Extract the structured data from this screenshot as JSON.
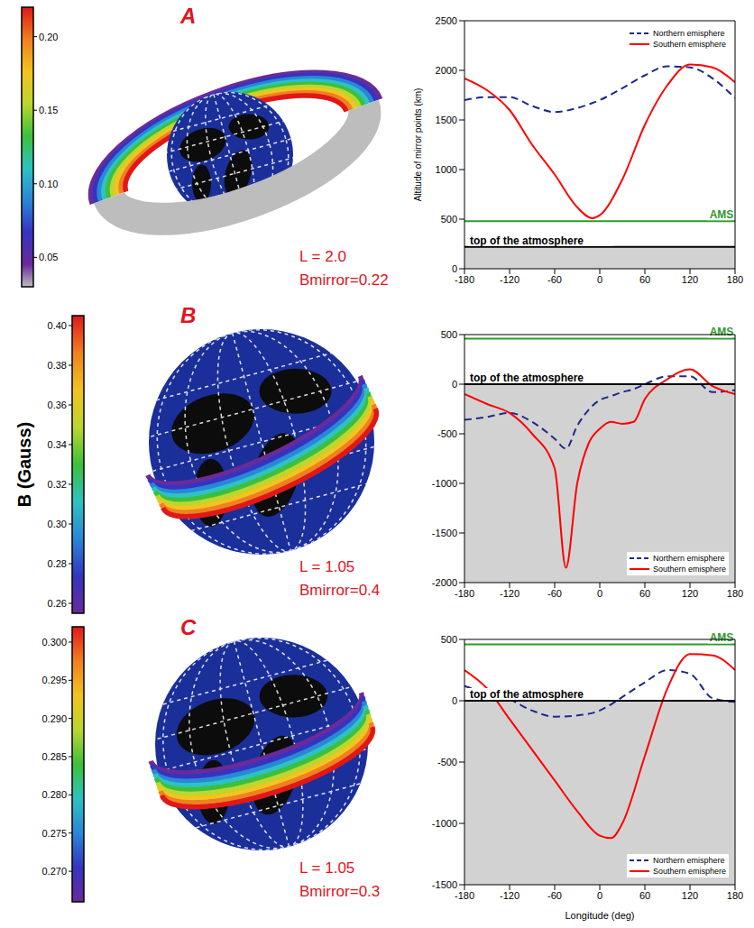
{
  "colorbar_title": "B (Gauss)",
  "chart_data": [
    {
      "panel_label": "A",
      "type": "line",
      "annotations": [
        "L = 2.0",
        "Bmirror=0.22"
      ],
      "colorbar": {
        "range": [
          0.03,
          0.22
        ],
        "ticks": [
          0.05,
          {
            "value": 0.1,
            "label": "0.10"
          },
          0.15,
          {
            "value": 0.2,
            "label": "0.20"
          }
        ]
      },
      "y_label": "Altitude of mirror points (km)",
      "xlim": [
        -180,
        180
      ],
      "xticks": [
        -180,
        -120,
        -60,
        0,
        60,
        120,
        180
      ],
      "ylim": [
        0,
        2500
      ],
      "yticks": [
        0,
        500,
        1000,
        1500,
        2000,
        2500
      ],
      "x": [
        -180,
        -150,
        -120,
        -90,
        -60,
        -30,
        -10,
        0,
        30,
        60,
        90,
        120,
        150,
        180
      ],
      "series": [
        {
          "name": "Northern emisphere",
          "color": "#1f2a8a",
          "line_style": "dashed",
          "values": [
            1700,
            1730,
            1730,
            1640,
            1580,
            1620,
            1670,
            1700,
            1820,
            1950,
            2040,
            2030,
            1920,
            1720
          ]
        },
        {
          "name": "Southern emisphere",
          "color": "#ff0000",
          "line_style": "solid",
          "values": [
            1920,
            1800,
            1600,
            1250,
            950,
            620,
            510,
            540,
            900,
            1450,
            1850,
            2060,
            2030,
            1880
          ]
        }
      ],
      "legend": "upper right",
      "reference_lines": [
        {
          "label": "AMS",
          "value": 480,
          "color": "#2e9a2e"
        },
        {
          "label": "top of the atmosphere",
          "value": 220,
          "color": "#000000"
        }
      ]
    },
    {
      "panel_label": "B",
      "type": "line",
      "annotations": [
        "L = 1.05",
        "Bmirror=0.4"
      ],
      "colorbar": {
        "range": [
          0.255,
          0.405
        ],
        "ticks": [
          0.26,
          0.28,
          {
            "value": 0.3,
            "label": "0.30"
          },
          0.32,
          0.34,
          0.36,
          0.38,
          {
            "value": 0.4,
            "label": "0.40"
          }
        ]
      },
      "xlim": [
        -180,
        180
      ],
      "xticks": [
        -180,
        -120,
        -60,
        0,
        60,
        120,
        180
      ],
      "ylim": [
        -2000,
        500
      ],
      "yticks": [
        -2000,
        -1500,
        -1000,
        -500,
        0,
        500
      ],
      "x": [
        -180,
        -150,
        -120,
        -90,
        -60,
        -45,
        -30,
        -15,
        0,
        15,
        30,
        45,
        60,
        90,
        120,
        150,
        180
      ],
      "series": [
        {
          "name": "Northern emisphere",
          "color": "#1f2a8a",
          "line_style": "dashed",
          "values": [
            -360,
            -330,
            -290,
            -380,
            -550,
            -650,
            -420,
            -260,
            -160,
            -120,
            -80,
            -50,
            0,
            80,
            80,
            -80,
            -60
          ]
        },
        {
          "name": "Southern emisphere",
          "color": "#ff0000",
          "line_style": "solid",
          "values": [
            -100,
            -200,
            -290,
            -500,
            -850,
            -1850,
            -1000,
            -600,
            -450,
            -380,
            -400,
            -380,
            -150,
            50,
            150,
            -20,
            -100
          ]
        }
      ],
      "legend": "lower right",
      "reference_lines": [
        {
          "label": "AMS",
          "value": 460,
          "color": "#2e9a2e"
        },
        {
          "label": "top of the atmosphere",
          "value": 0,
          "color": "#000000"
        }
      ]
    },
    {
      "panel_label": "C",
      "type": "line",
      "annotations": [
        "L = 1.05",
        "Bmirror=0.3"
      ],
      "colorbar": {
        "range": [
          0.266,
          0.302
        ],
        "ticks": [
          {
            "value": 0.27,
            "label": "0.270"
          },
          0.275,
          {
            "value": 0.28,
            "label": "0.280"
          },
          0.285,
          {
            "value": 0.29,
            "label": "0.290"
          },
          0.295,
          {
            "value": 0.3,
            "label": "0.300"
          }
        ]
      },
      "x_label": "Longitude (deg)",
      "xlim": [
        -180,
        180
      ],
      "xticks": [
        -180,
        -120,
        -60,
        0,
        60,
        120,
        180
      ],
      "ylim": [
        -1500,
        500
      ],
      "yticks": [
        -1500,
        -1000,
        -500,
        0,
        500
      ],
      "x": [
        -180,
        -150,
        -120,
        -90,
        -60,
        -30,
        0,
        15,
        30,
        60,
        90,
        120,
        150,
        180
      ],
      "series": [
        {
          "name": "Northern emisphere",
          "color": "#1f2a8a",
          "line_style": "dashed",
          "values": [
            120,
            60,
            10,
            -80,
            -130,
            -120,
            -80,
            -30,
            30,
            150,
            250,
            220,
            20,
            -10
          ]
        },
        {
          "name": "Southern emisphere",
          "color": "#ff0000",
          "line_style": "solid",
          "values": [
            250,
            100,
            -150,
            -400,
            -650,
            -900,
            -1100,
            -1120,
            -1000,
            -450,
            100,
            380,
            370,
            250
          ]
        }
      ],
      "legend": "lower right",
      "reference_lines": [
        {
          "label": "AMS",
          "value": 460,
          "color": "#2e9a2e"
        },
        {
          "label": "top of the atmosphere",
          "value": 0,
          "color": "#000000"
        }
      ]
    }
  ]
}
